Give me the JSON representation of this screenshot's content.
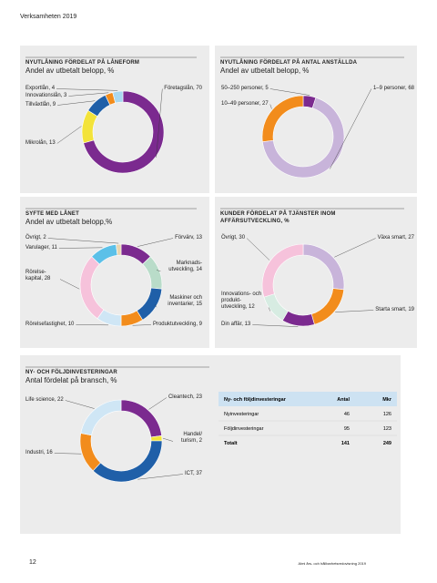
{
  "header": {
    "title": "Verksamheten 2019"
  },
  "chart_data": [
    {
      "type": "pie",
      "title": "NYUTLÅNING FÖRDELAT PÅ LÅNEFORM",
      "subtitle": "Andel av utbetalt belopp, %",
      "categories": [
        "Företagslån",
        "Mikrolån",
        "Tillväxtlån",
        "Innovationslån",
        "Exportlån"
      ],
      "values": [
        70,
        13,
        9,
        3,
        4
      ],
      "colors": [
        "#7b2a8f",
        "#f3e33a",
        "#1f5fa8",
        "#f28c1c",
        "#a9d8f0"
      ]
    },
    {
      "type": "pie",
      "title": "NYUTLÅNING FÖRDELAT PÅ ANTAL ANSTÄLLDA",
      "subtitle": "Andel av utbetalt belopp, %",
      "categories": [
        "50–250 personer",
        "1–9 personer",
        "10–49 personer"
      ],
      "values": [
        5,
        68,
        27
      ],
      "colors": [
        "#7b2a8f",
        "#c8b4da",
        "#f28c1c"
      ]
    },
    {
      "type": "pie",
      "title": "SYFTE MED LÅNET",
      "subtitle": "Andel av utbetalt belopp,%",
      "categories": [
        "Förvärv",
        "Marknads-utveckling",
        "Maskiner och inventarier",
        "Produktutveckling",
        "Rörelsefastighet",
        "Rörelse-kapital",
        "Varulager",
        "Övrigt"
      ],
      "values": [
        13,
        14,
        15,
        9,
        10,
        28,
        11,
        2
      ],
      "colors": [
        "#7b2a8f",
        "#b9dcc9",
        "#1f5fa8",
        "#f28c1c",
        "#cfe6f5",
        "#f6c2db",
        "#5bc0e8",
        "#e8d6b0"
      ]
    },
    {
      "type": "pie",
      "title": "KUNDER FÖRDELAT PÅ TJÄNSTER INOM AFFÄRSUTVECKLING, %",
      "categories": [
        "Växa smart",
        "Starta smart",
        "Din affär",
        "Innovations- och produkt-utveckling",
        "Övrigt"
      ],
      "values": [
        27,
        19,
        13,
        12,
        30
      ],
      "colors": [
        "#c8b4da",
        "#f28c1c",
        "#7b2a8f",
        "#d7ece2",
        "#f6c2db"
      ]
    },
    {
      "type": "pie",
      "title": "NY- OCH FÖLJDINVESTERINGAR",
      "subtitle": "Antal fördelat på bransch, %",
      "categories": [
        "Cleantech",
        "Handel/ turism",
        "ICT",
        "Industri",
        "Life science"
      ],
      "values": [
        23,
        2,
        37,
        16,
        22
      ],
      "colors": [
        "#7b2a8f",
        "#f3e33a",
        "#1f5fa8",
        "#f28c1c",
        "#cfe6f5"
      ]
    }
  ],
  "table": {
    "columns": [
      "Ny- och följdinvesteringar",
      "Antal",
      "Mkr"
    ],
    "rows": [
      [
        "Nyinvesteringar",
        46,
        126
      ],
      [
        "Följdinvesteringar",
        95,
        123
      ],
      [
        "Totalt",
        141,
        249
      ]
    ]
  },
  "footer": {
    "page": "12",
    "publication": "Almi års- och hållbarhetsredovisning 2019"
  }
}
